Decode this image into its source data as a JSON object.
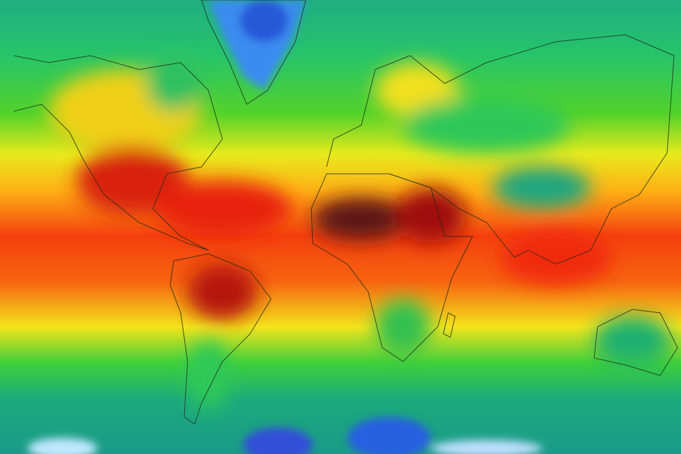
{
  "map": {
    "type": "global-temperature-heatmap",
    "projection": "mercator",
    "color_scale": [
      "#f4f4ff",
      "#3a7bff",
      "#1a9e8c",
      "#22c84a",
      "#8ee01a",
      "#f2ee1a",
      "#ffa514",
      "#f52a0c",
      "#b3100a",
      "#4a1a1a"
    ]
  }
}
